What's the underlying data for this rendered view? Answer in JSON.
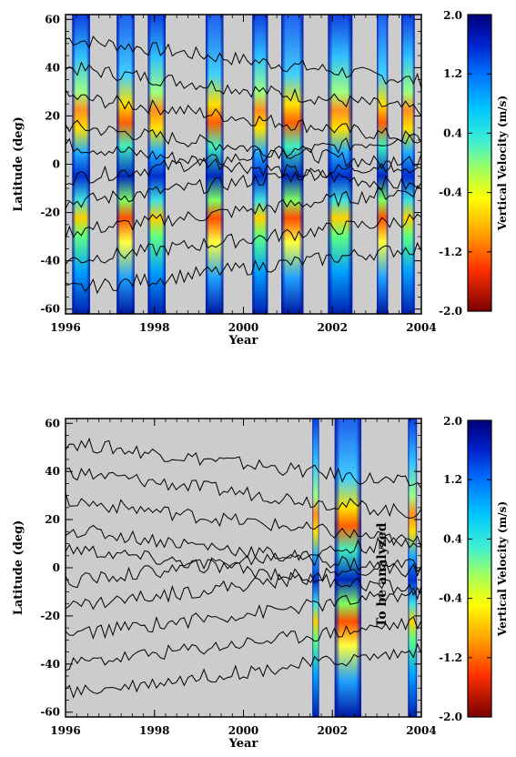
{
  "chart_data": [
    {
      "type": "heatmap",
      "title": "",
      "xlabel": "Year",
      "ylabel": "Latitude (deg)",
      "xlim": [
        1996,
        2004
      ],
      "ylim": [
        -62,
        62
      ],
      "x_ticks": [
        "1996",
        "1998",
        "2000",
        "2002",
        "2004"
      ],
      "y_ticks": [
        "-60",
        "-40",
        "-20",
        "0",
        "20",
        "40",
        "60"
      ],
      "background_color": "#cccccc",
      "observed_strips": [
        {
          "start": 1996.15,
          "end": 1996.55
        },
        {
          "start": 1997.15,
          "end": 1997.55
        },
        {
          "start": 1997.85,
          "end": 1998.25
        },
        {
          "start": 1999.15,
          "end": 1999.55
        },
        {
          "start": 2000.2,
          "end": 2000.55
        },
        {
          "start": 2000.85,
          "end": 2001.35
        },
        {
          "start": 2001.9,
          "end": 2002.45
        },
        {
          "start": 2003.0,
          "end": 2003.25
        },
        {
          "start": 2003.55,
          "end": 2003.85
        }
      ],
      "colorbar": {
        "label": "Vertical Velocity (m/s)",
        "ticks": [
          "2.0",
          "1.2",
          "0.4",
          "-0.4",
          "-1.2",
          "-2.0"
        ],
        "range": [
          -2.0,
          2.0
        ]
      }
    },
    {
      "type": "heatmap",
      "title": "",
      "xlabel": "Year",
      "ylabel": "Latitude (deg)",
      "xlim": [
        1996,
        2004
      ],
      "ylim": [
        -62,
        62
      ],
      "x_ticks": [
        "1996",
        "1998",
        "2000",
        "2002",
        "2004"
      ],
      "y_ticks": [
        "-60",
        "-40",
        "-20",
        "0",
        "20",
        "40",
        "60"
      ],
      "background_color": "#cccccc",
      "observed_strips": [
        {
          "start": 2001.55,
          "end": 2001.7
        },
        {
          "start": 2002.05,
          "end": 2002.65
        },
        {
          "start": 2003.7,
          "end": 2003.9
        }
      ],
      "annotation": "To be analyzed",
      "colorbar": {
        "label": "Vertical Velocity (m/s)",
        "ticks": [
          "2.0",
          "1.2",
          "0.4",
          "-0.4",
          "-1.2",
          "-2.0"
        ],
        "range": [
          -2.0,
          2.0
        ]
      }
    }
  ]
}
